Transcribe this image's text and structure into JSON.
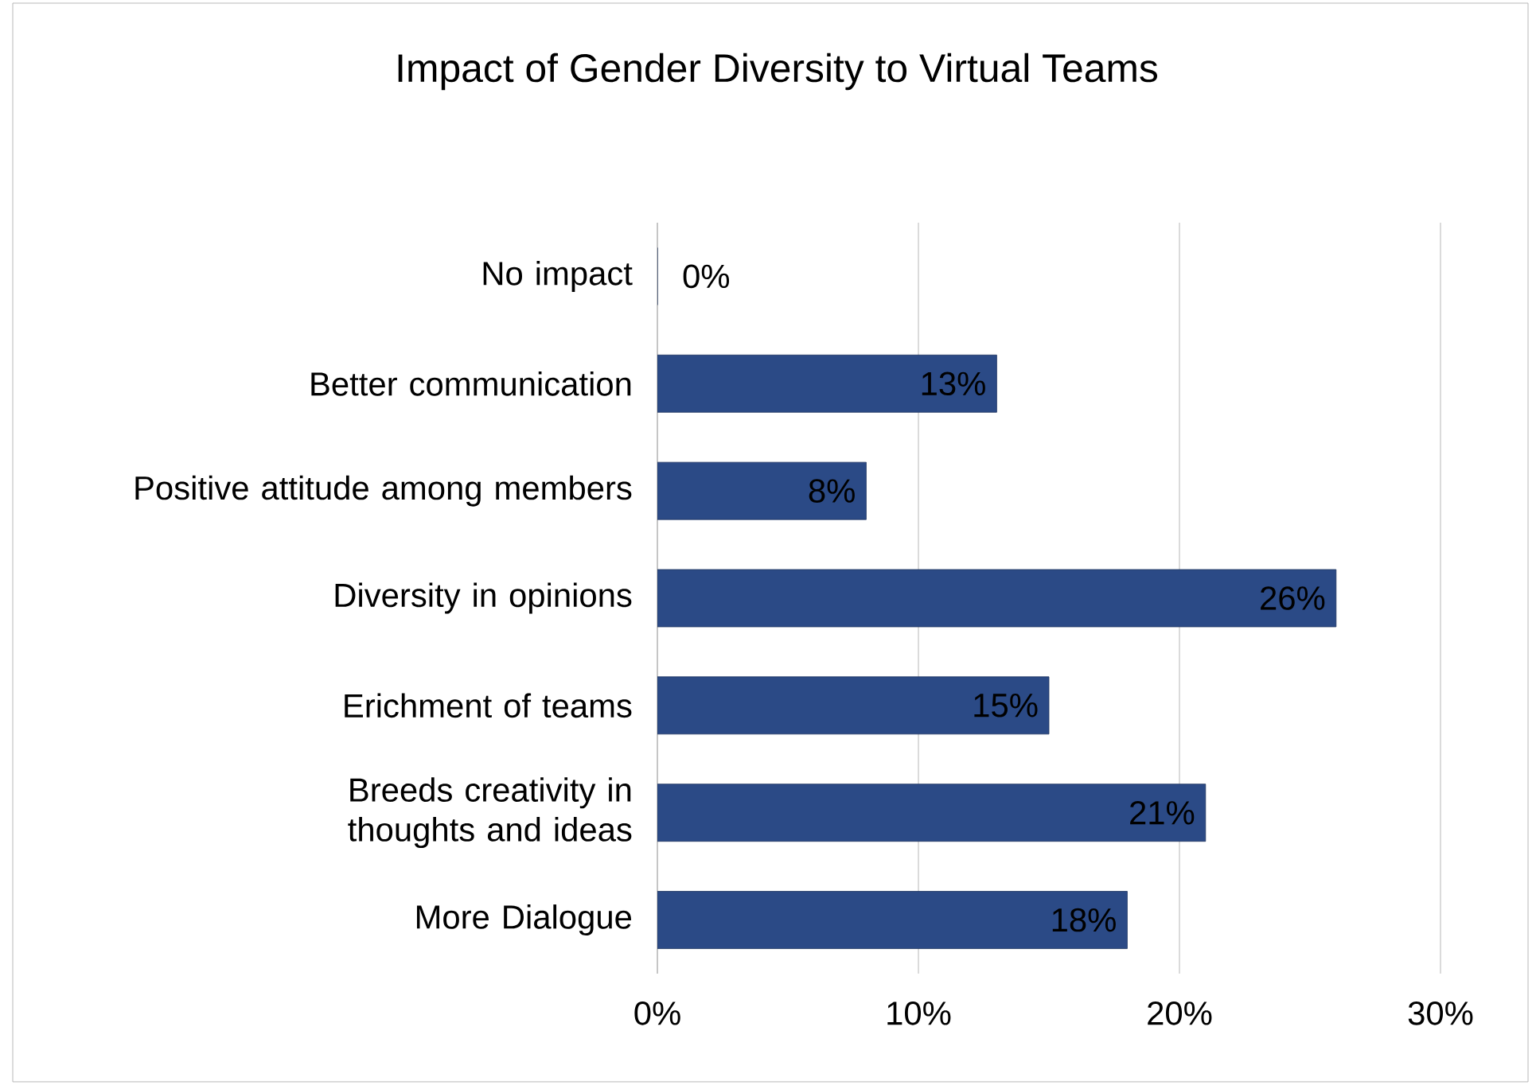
{
  "chart_data": {
    "type": "bar",
    "orientation": "horizontal",
    "title": "Impact of Gender Diversity to Virtual Teams",
    "categories": [
      "No impact",
      "Better communication",
      "Positive attitude among members",
      "Diversity in opinions",
      "Erichment of teams",
      "Breeds creativity in thoughts and ideas",
      "More Dialogue"
    ],
    "values": [
      0,
      13,
      8,
      26,
      15,
      21,
      18
    ],
    "value_labels": [
      "0%",
      "13%",
      "8%",
      "26%",
      "15%",
      "21%",
      "18%"
    ],
    "color": "#2b4a86",
    "xlim": [
      0,
      30
    ],
    "xticks": [
      {
        "value": 0,
        "label": "0%"
      },
      {
        "value": 10,
        "label": "10%"
      },
      {
        "value": 20,
        "label": "20%"
      },
      {
        "value": 30,
        "label": "30%"
      }
    ],
    "grid": "x"
  }
}
